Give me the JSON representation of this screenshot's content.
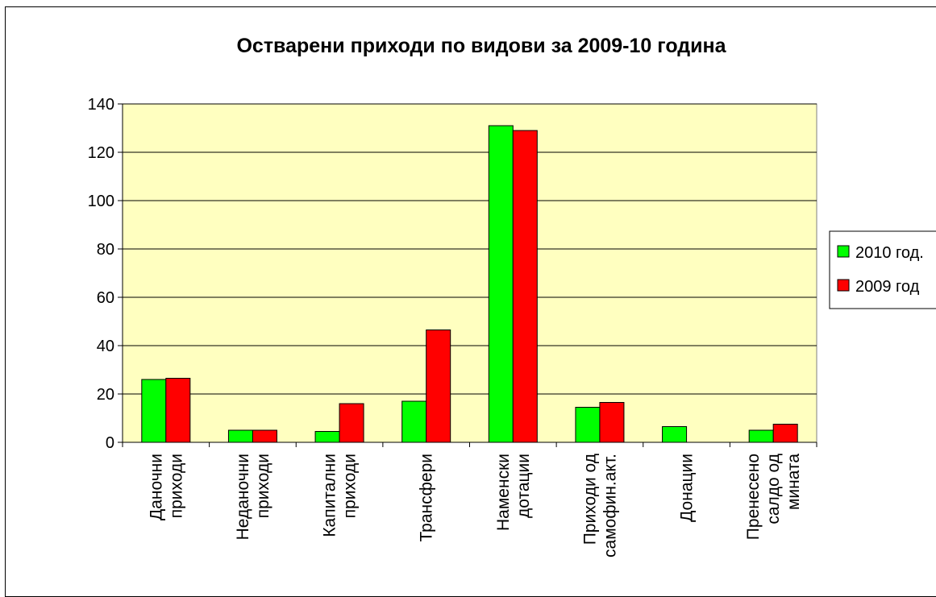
{
  "chart_data": {
    "type": "bar",
    "title": "Остварени приходи по видови  за 2009-10 година",
    "xlabel": "",
    "ylabel": "",
    "ylim": [
      0,
      140
    ],
    "yticks": [
      0,
      20,
      40,
      60,
      80,
      100,
      120,
      140
    ],
    "grid": true,
    "legend_position": "right",
    "plot_background": "#ffffc0",
    "categories": [
      [
        "Даночни",
        "приходи"
      ],
      [
        "Неданочни",
        "приходи"
      ],
      [
        "Капитални",
        "приходи"
      ],
      [
        "Трансфери"
      ],
      [
        "Наменски",
        "дотации"
      ],
      [
        "Приходи од",
        "самофин.акт."
      ],
      [
        "Донации"
      ],
      [
        "Пренесено",
        "салдо од",
        "мината"
      ]
    ],
    "series": [
      {
        "name": "2010 год.",
        "color": "#00ff00",
        "values": [
          26,
          5,
          4.5,
          17,
          131,
          14.5,
          6.5,
          5
        ]
      },
      {
        "name": "2009 год",
        "color": "#ff0000",
        "values": [
          26.5,
          5,
          16,
          46.5,
          129,
          16.5,
          0,
          7.5
        ]
      }
    ]
  }
}
